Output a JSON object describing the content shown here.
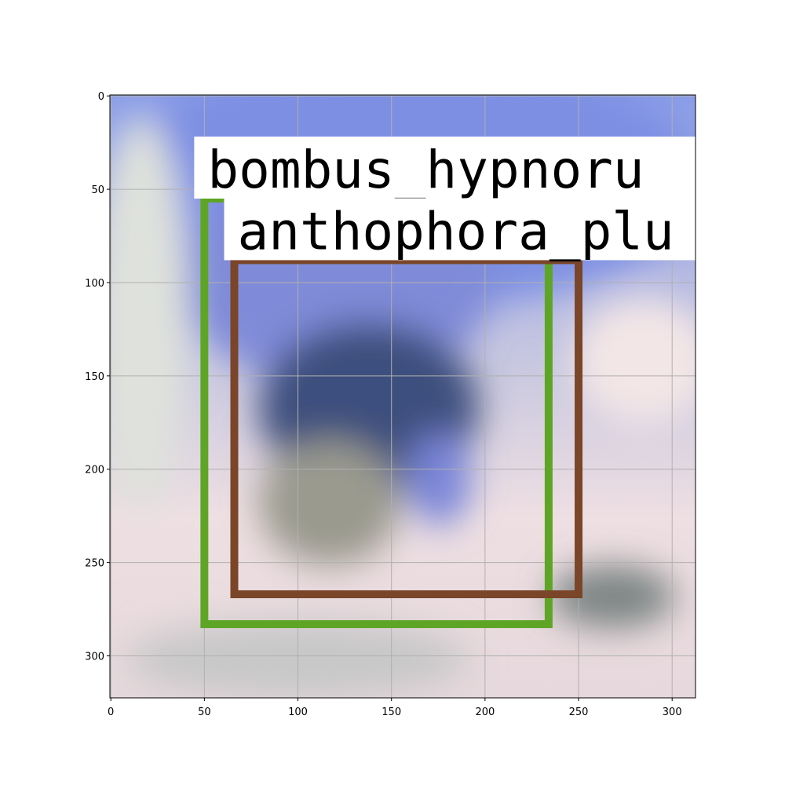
{
  "chart_data": {
    "type": "image_detections",
    "xlim": [
      -0.5,
      312.5
    ],
    "ylim": [
      322.5,
      -0.5
    ],
    "xticks": [
      0,
      50,
      100,
      150,
      200,
      250,
      300
    ],
    "yticks": [
      0,
      50,
      100,
      150,
      200,
      250,
      300
    ],
    "grid": true,
    "boxes": [
      {
        "label": "bombus_hypnoru",
        "color": "#5ea526",
        "x1": 50,
        "y1": 55,
        "x2": 234,
        "y2": 283
      },
      {
        "label": "anthophora_plu",
        "color": "#7a4529",
        "x1": 66,
        "y1": 88,
        "x2": 250,
        "y2": 267
      }
    ]
  }
}
